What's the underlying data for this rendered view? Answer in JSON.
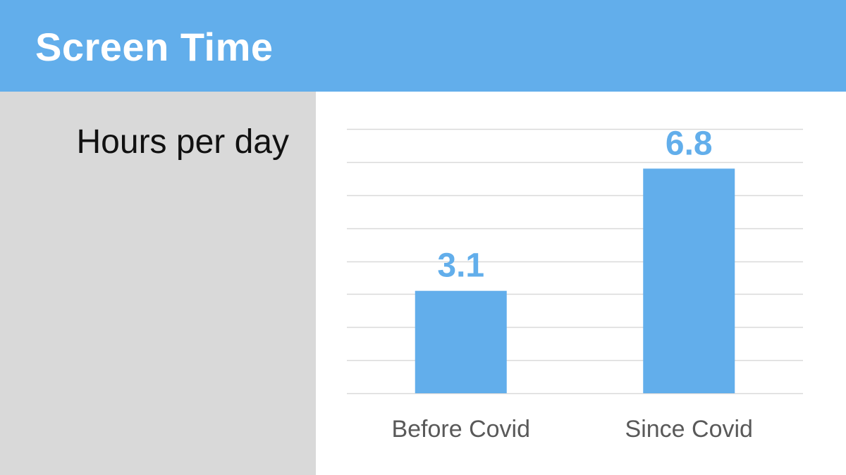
{
  "header": {
    "title": "Screen Time"
  },
  "sidebar": {
    "subtitle": "Hours per day"
  },
  "colors": {
    "accent": "#62aeeb",
    "gridline": "#d9d9d9",
    "category_text": "#595959"
  },
  "chart_data": {
    "type": "bar",
    "categories": [
      "Before Covid",
      "Since Covid"
    ],
    "values": [
      3.1,
      6.8
    ],
    "data_labels": [
      "3.1",
      "6.8"
    ],
    "title": "",
    "xlabel": "",
    "ylabel": "",
    "ylim": [
      0,
      8
    ],
    "grid": true,
    "legend": "none"
  }
}
